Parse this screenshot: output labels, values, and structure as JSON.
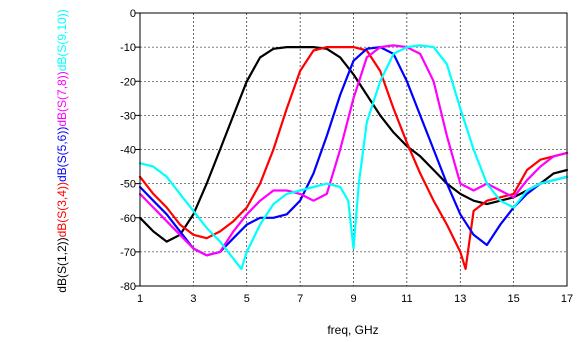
{
  "chart_data": {
    "type": "line",
    "xlabel": "freq, GHz",
    "ylabel_parts": [
      {
        "text": "dB(S(1,2))",
        "color": "#000000"
      },
      {
        "text": "dB(S(3,4))",
        "color": "#ff0000"
      },
      {
        "text": "dB(S(5,6))",
        "color": "#0000ff"
      },
      {
        "text": "dB(S(7,8))",
        "color": "#ff00ff"
      },
      {
        "text": "dB(S(9,10))",
        "color": "#00ffff"
      }
    ],
    "xlim": [
      1,
      17
    ],
    "ylim": [
      -80,
      0
    ],
    "x_ticks": [
      "1",
      "3",
      "5",
      "7",
      "9",
      "11",
      "13",
      "15",
      "17"
    ],
    "y_ticks": [
      "0",
      "-10",
      "-20",
      "-30",
      "-40",
      "-50",
      "-60",
      "-70",
      "-80"
    ],
    "grid": true,
    "series": [
      {
        "color": "#000000",
        "x": [
          1,
          1.5,
          2,
          2.5,
          3,
          3.5,
          4,
          4.5,
          5,
          5.5,
          6,
          6.5,
          7,
          7.5,
          8,
          8.5,
          9,
          9.5,
          10,
          10.5,
          11,
          11.5,
          12,
          12.5,
          13,
          13.5,
          14,
          14.5,
          15,
          15.5,
          16,
          16.5,
          17
        ],
        "y": [
          -60,
          -64,
          -67,
          -65,
          -59,
          -50,
          -40,
          -30,
          -20,
          -13,
          -10.5,
          -10,
          -10,
          -10,
          -10.5,
          -13,
          -18,
          -24,
          -30,
          -35,
          -39,
          -42,
          -46,
          -50,
          -53,
          -55,
          -56,
          -55,
          -54,
          -52,
          -50,
          -47,
          -46
        ]
      },
      {
        "color": "#ff0000",
        "x": [
          1,
          1.5,
          2,
          2.5,
          3,
          3.5,
          4,
          4.5,
          5,
          5.5,
          6,
          6.5,
          7,
          7.5,
          8,
          8.5,
          9,
          9.5,
          10,
          10.5,
          11,
          11.5,
          12,
          12.5,
          13,
          13.2,
          13.5,
          14,
          14.5,
          15,
          15.5,
          16,
          16.5,
          17
        ],
        "y": [
          -48,
          -53,
          -57,
          -62,
          -65,
          -66,
          -64,
          -61,
          -57,
          -50,
          -40,
          -28,
          -17,
          -11,
          -10,
          -10,
          -10,
          -11,
          -17,
          -28,
          -38,
          -47,
          -55,
          -62,
          -70,
          -75,
          -58,
          -55,
          -54,
          -53,
          -46,
          -43,
          -42,
          -41
        ]
      },
      {
        "color": "#0000ff",
        "x": [
          1,
          1.5,
          2,
          2.5,
          3,
          3.5,
          4,
          4.5,
          5,
          5.5,
          6,
          6.5,
          7,
          7.5,
          8,
          8.5,
          9,
          9.5,
          10,
          10.5,
          11,
          11.5,
          12,
          12.5,
          13,
          13.5,
          14,
          14.5,
          15,
          15.5,
          16,
          16.5,
          17
        ],
        "y": [
          -51,
          -55,
          -59,
          -64,
          -69,
          -71,
          -70,
          -66,
          -62,
          -60,
          -60,
          -59,
          -55,
          -47,
          -36,
          -24,
          -14,
          -10.5,
          -10,
          -12,
          -20,
          -30,
          -40,
          -50,
          -59,
          -65,
          -68,
          -62,
          -57,
          -53,
          -50,
          -49,
          -48
        ]
      },
      {
        "color": "#ff00ff",
        "x": [
          1,
          1.5,
          2,
          2.5,
          3,
          3.5,
          4,
          4.5,
          5,
          5.5,
          6,
          6.5,
          7,
          7.5,
          8,
          8.5,
          9,
          9.5,
          10,
          10.5,
          11,
          11.5,
          12,
          12.5,
          13,
          13.5,
          14,
          14.5,
          15,
          15.5,
          16,
          16.5,
          17
        ],
        "y": [
          -53,
          -57,
          -61,
          -65,
          -69,
          -71,
          -70,
          -64,
          -59,
          -55,
          -52,
          -52,
          -53,
          -55,
          -53,
          -40,
          -25,
          -13,
          -10,
          -9.5,
          -10,
          -12,
          -20,
          -36,
          -50,
          -52,
          -50,
          -52,
          -54,
          -49,
          -45,
          -42,
          -41
        ]
      },
      {
        "color": "#00ffff",
        "x": [
          1,
          1.5,
          2,
          2.5,
          3,
          3.5,
          4,
          4.5,
          4.8,
          5,
          5.5,
          6,
          6.5,
          7,
          7.5,
          8,
          8.5,
          8.8,
          9,
          9.2,
          9.5,
          10,
          10.5,
          11,
          11.5,
          12,
          12.5,
          13,
          13.5,
          14,
          14.5,
          15,
          15.5,
          16,
          16.5,
          17
        ],
        "y": [
          -44,
          -45,
          -48,
          -53,
          -58,
          -63,
          -67,
          -72,
          -75,
          -70,
          -62,
          -56,
          -53,
          -52,
          -51,
          -50,
          -51,
          -55,
          -69,
          -50,
          -32,
          -20,
          -12,
          -10,
          -9.5,
          -10,
          -15,
          -28,
          -40,
          -50,
          -55,
          -57,
          -52,
          -50,
          -49,
          -48
        ]
      }
    ]
  }
}
